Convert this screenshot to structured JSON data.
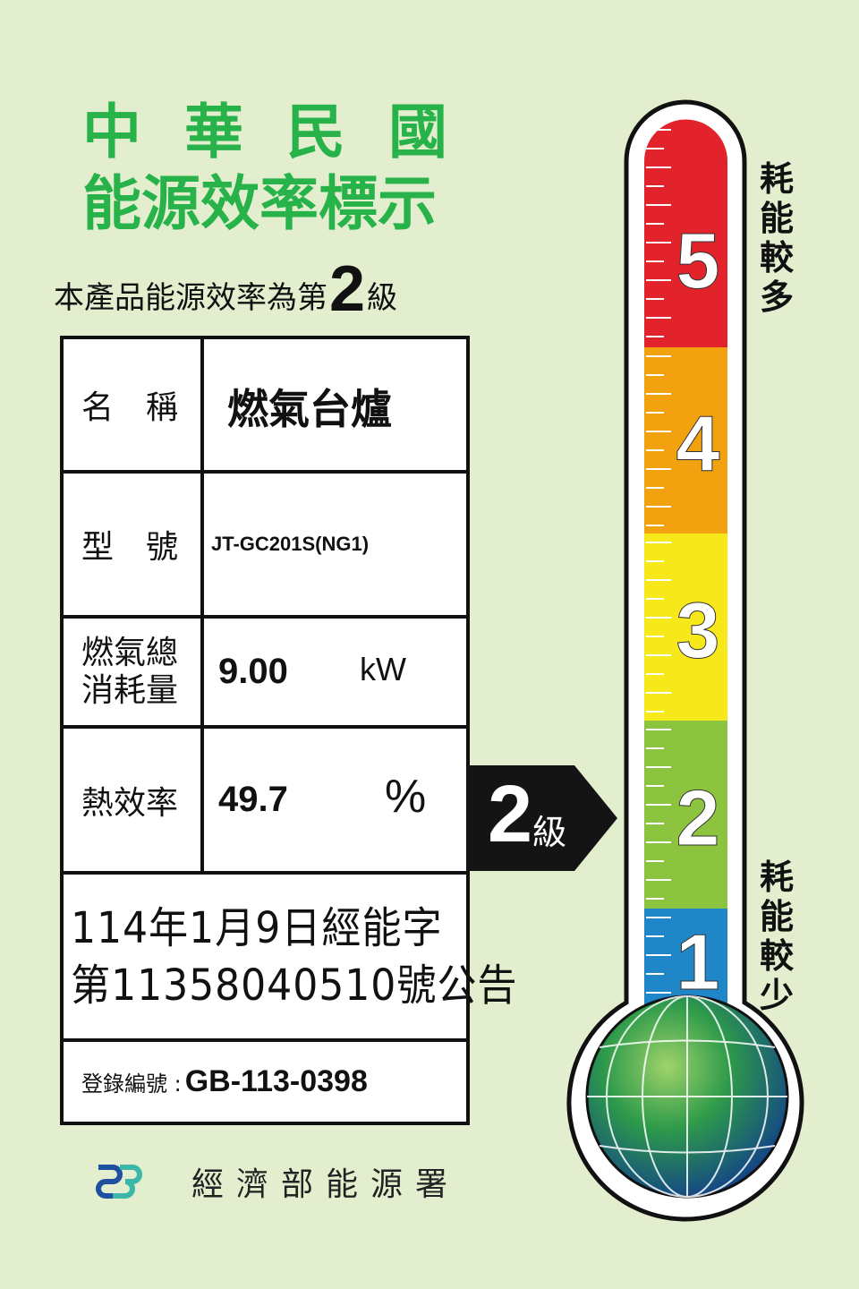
{
  "header": {
    "title_line1": "中華民國",
    "title_line2": "能源效率標示"
  },
  "grade_statement": {
    "prefix": "本產品能源效率為第",
    "grade": "2",
    "suffix": "級"
  },
  "table": {
    "name_label": "名　稱",
    "name_value": "燃氣台爐",
    "model_label": "型　號",
    "model_value": "JT-GC201S(NG1)",
    "gas_label_1": "燃氣總",
    "gas_label_2": "消耗量",
    "gas_value": "9.00",
    "gas_unit": "kW",
    "eff_label": "熱效率",
    "eff_value": "49.7",
    "eff_unit": "%",
    "notice_line1": "114年1月9日經能字",
    "notice_line2": "第11358040510號公告",
    "reg_label": "登錄編號 :",
    "reg_value": "GB-113-0398"
  },
  "indicator": {
    "grade": "2",
    "unit": "級"
  },
  "thermometer": {
    "levels": [
      {
        "label": "5",
        "color": "#e3232b"
      },
      {
        "label": "4",
        "color": "#f2a10f"
      },
      {
        "label": "3",
        "color": "#f7e81c"
      },
      {
        "label": "2",
        "color": "#8cc43f"
      },
      {
        "label": "1",
        "color": "#1f86c8"
      }
    ],
    "top_caption": "耗能較多",
    "bottom_caption": "耗能較少"
  },
  "footer": {
    "org": "經濟部能源署",
    "logo_color_1": "#1f4fa0",
    "logo_color_2": "#3cb6a8"
  },
  "colors": {
    "background": "#e3eecf",
    "title_green": "#27b24a"
  }
}
